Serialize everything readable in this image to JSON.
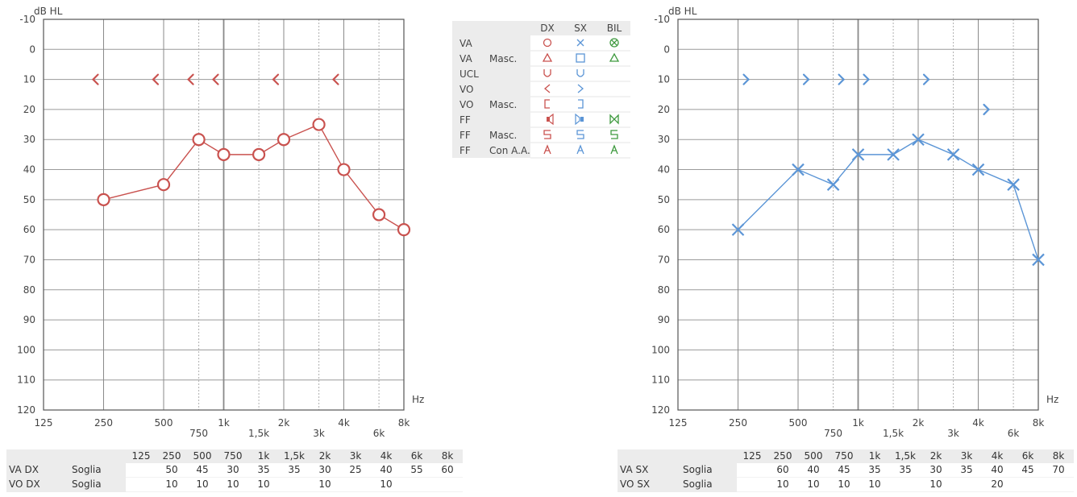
{
  "chart_data": [
    {
      "type": "line",
      "ear": "DX",
      "ylabel": "dB HL",
      "xlabel": "Hz",
      "ylim": [
        120,
        -10
      ],
      "y_ticks": [
        "-10",
        "0",
        "10",
        "20",
        "30",
        "40",
        "50",
        "60",
        "70",
        "80",
        "90",
        "100",
        "110",
        "120"
      ],
      "x_ticks": [
        "125",
        "250",
        "500",
        "750",
        "1k",
        "1,5k",
        "2k",
        "3k",
        "4k",
        "6k",
        "8k"
      ],
      "color": "#c9524f",
      "series": [
        {
          "kind": "air",
          "marker": "circle",
          "x": [
            "250",
            "500",
            "750",
            "1k",
            "1,5k",
            "2k",
            "3k",
            "4k",
            "6k",
            "8k"
          ],
          "values": [
            50,
            45,
            30,
            35,
            35,
            30,
            25,
            40,
            55,
            60
          ]
        },
        {
          "kind": "bone",
          "marker": "<",
          "x": [
            "250",
            "500",
            "750",
            "1k",
            "2k",
            "4k"
          ],
          "values": [
            10,
            10,
            10,
            10,
            10,
            10
          ]
        }
      ]
    },
    {
      "type": "line",
      "ear": "SX",
      "ylabel": "dB HL",
      "xlabel": "Hz",
      "ylim": [
        120,
        -10
      ],
      "y_ticks": [
        "-10",
        "0",
        "10",
        "20",
        "30",
        "40",
        "50",
        "60",
        "70",
        "80",
        "90",
        "100",
        "110",
        "120"
      ],
      "x_ticks": [
        "125",
        "250",
        "500",
        "750",
        "1k",
        "1,5k",
        "2k",
        "3k",
        "4k",
        "6k",
        "8k"
      ],
      "color": "#5b95d6",
      "series": [
        {
          "kind": "air",
          "marker": "x",
          "x": [
            "250",
            "500",
            "750",
            "1k",
            "1,5k",
            "2k",
            "3k",
            "4k",
            "6k",
            "8k"
          ],
          "values": [
            60,
            40,
            45,
            35,
            35,
            30,
            35,
            40,
            45,
            70
          ]
        },
        {
          "kind": "bone",
          "marker": ">",
          "x": [
            "250",
            "500",
            "750",
            "1k",
            "2k",
            "4k"
          ],
          "values": [
            10,
            10,
            10,
            10,
            10,
            20
          ]
        }
      ]
    }
  ],
  "legend": {
    "cols": [
      "DX",
      "SX",
      "BIL"
    ],
    "rows": [
      {
        "a": "VA",
        "b": ""
      },
      {
        "a": "VA",
        "b": "Masc."
      },
      {
        "a": "UCL",
        "b": ""
      },
      {
        "a": "VO",
        "b": ""
      },
      {
        "a": "VO",
        "b": "Masc."
      },
      {
        "a": "FF",
        "b": ""
      },
      {
        "a": "FF",
        "b": "Masc."
      },
      {
        "a": "FF",
        "b": "Con A.A."
      }
    ]
  },
  "tables": {
    "headers": [
      "125",
      "250",
      "500",
      "750",
      "1k",
      "1,5k",
      "2k",
      "3k",
      "4k",
      "6k",
      "8k"
    ],
    "left": [
      {
        "a": "VA DX",
        "b": "Soglia",
        "vals": [
          "",
          "50",
          "45",
          "30",
          "35",
          "35",
          "30",
          "25",
          "40",
          "55",
          "60"
        ]
      },
      {
        "a": "VO DX",
        "b": "Soglia",
        "vals": [
          "",
          "10",
          "10",
          "10",
          "10",
          "",
          "10",
          "",
          "10",
          "",
          ""
        ]
      }
    ],
    "right": [
      {
        "a": "VA SX",
        "b": "Soglia",
        "vals": [
          "",
          "60",
          "40",
          "45",
          "35",
          "35",
          "30",
          "35",
          "40",
          "45",
          "70"
        ]
      },
      {
        "a": "VO SX",
        "b": "Soglia",
        "vals": [
          "",
          "10",
          "10",
          "10",
          "10",
          "",
          "10",
          "",
          "20",
          "",
          ""
        ]
      }
    ]
  },
  "colors": {
    "dx": "#c9524f",
    "sx": "#5b95d6",
    "bil": "#3f9a3f",
    "grid": "#8a8a8a"
  }
}
